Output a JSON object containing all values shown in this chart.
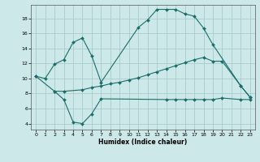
{
  "bg_color": "#cde8e8",
  "grid_color": "#aacccc",
  "line_color": "#1a6e6a",
  "xlabel": "Humidex (Indice chaleur)",
  "xlim": [
    -0.5,
    23.5
  ],
  "ylim": [
    3.2,
    19.8
  ],
  "yticks": [
    4,
    6,
    8,
    10,
    12,
    14,
    16,
    18
  ],
  "xticks": [
    0,
    1,
    2,
    3,
    4,
    5,
    6,
    7,
    8,
    9,
    10,
    11,
    12,
    13,
    14,
    15,
    16,
    17,
    18,
    19,
    20,
    21,
    22,
    23
  ],
  "line1_x": [
    0,
    1,
    2,
    3,
    4,
    5,
    6,
    7,
    11,
    12,
    13,
    14,
    15,
    16,
    17,
    18,
    19,
    22,
    23
  ],
  "line1_y": [
    10.3,
    10.0,
    11.9,
    12.5,
    14.8,
    15.4,
    13.0,
    9.5,
    16.8,
    17.8,
    19.2,
    19.2,
    19.2,
    18.6,
    18.3,
    16.7,
    14.5,
    9.0,
    7.5
  ],
  "line2_x": [
    0,
    2,
    3,
    5,
    6,
    7,
    8,
    9,
    10,
    11,
    12,
    13,
    14,
    15,
    16,
    17,
    18,
    19,
    20,
    22,
    23
  ],
  "line2_y": [
    10.3,
    8.3,
    8.3,
    8.5,
    8.8,
    9.0,
    9.3,
    9.5,
    9.8,
    10.1,
    10.5,
    10.9,
    11.3,
    11.7,
    12.1,
    12.5,
    12.8,
    12.3,
    12.3,
    9.0,
    7.5
  ],
  "line3_x": [
    2,
    3,
    4,
    5,
    6,
    7,
    14,
    15,
    16,
    17,
    18,
    19,
    20,
    22,
    23
  ],
  "line3_y": [
    8.3,
    7.2,
    4.2,
    4.0,
    5.3,
    7.3,
    7.2,
    7.2,
    7.2,
    7.2,
    7.2,
    7.2,
    7.4,
    7.2,
    7.2
  ]
}
